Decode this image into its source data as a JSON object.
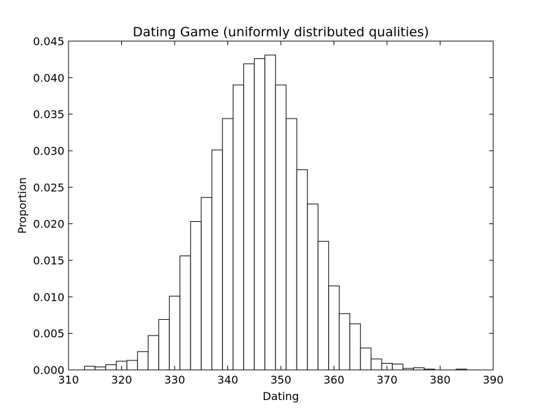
{
  "chart_data": {
    "type": "bar",
    "title": "Dating Game (uniformly distributed qualities)",
    "xlabel": "Dating",
    "ylabel": "Proportion",
    "xlim": [
      310,
      390
    ],
    "ylim": [
      0,
      0.045
    ],
    "xticks": [
      "310",
      "320",
      "330",
      "340",
      "350",
      "360",
      "370",
      "380",
      "390"
    ],
    "yticks": [
      "0.000",
      "0.005",
      "0.010",
      "0.015",
      "0.020",
      "0.025",
      "0.030",
      "0.035",
      "0.040",
      "0.045"
    ],
    "bins": [
      {
        "x0": 313.0,
        "x1": 315.0,
        "value": 0.0005
      },
      {
        "x0": 315.0,
        "x1": 317.0,
        "value": 0.0004
      },
      {
        "x0": 317.0,
        "x1": 319.0,
        "value": 0.0007
      },
      {
        "x0": 319.0,
        "x1": 321.0,
        "value": 0.0012
      },
      {
        "x0": 321.0,
        "x1": 323.0,
        "value": 0.0013
      },
      {
        "x0": 323.0,
        "x1": 325.0,
        "value": 0.0025
      },
      {
        "x0": 325.0,
        "x1": 327.0,
        "value": 0.0047
      },
      {
        "x0": 327.0,
        "x1": 329.0,
        "value": 0.0069
      },
      {
        "x0": 329.0,
        "x1": 331.0,
        "value": 0.0101
      },
      {
        "x0": 331.0,
        "x1": 333.0,
        "value": 0.0156
      },
      {
        "x0": 333.0,
        "x1": 335.0,
        "value": 0.0203
      },
      {
        "x0": 335.0,
        "x1": 337.0,
        "value": 0.0236
      },
      {
        "x0": 337.0,
        "x1": 339.0,
        "value": 0.0301
      },
      {
        "x0": 339.0,
        "x1": 341.0,
        "value": 0.0344
      },
      {
        "x0": 341.0,
        "x1": 343.0,
        "value": 0.039
      },
      {
        "x0": 343.0,
        "x1": 345.0,
        "value": 0.0419
      },
      {
        "x0": 345.0,
        "x1": 347.0,
        "value": 0.0426
      },
      {
        "x0": 347.0,
        "x1": 349.0,
        "value": 0.0431
      },
      {
        "x0": 349.0,
        "x1": 351.0,
        "value": 0.039
      },
      {
        "x0": 351.0,
        "x1": 353.0,
        "value": 0.0344
      },
      {
        "x0": 353.0,
        "x1": 355.0,
        "value": 0.0274
      },
      {
        "x0": 355.0,
        "x1": 357.0,
        "value": 0.0227
      },
      {
        "x0": 357.0,
        "x1": 359.0,
        "value": 0.0176
      },
      {
        "x0": 359.0,
        "x1": 361.0,
        "value": 0.0115
      },
      {
        "x0": 361.0,
        "x1": 363.0,
        "value": 0.0077
      },
      {
        "x0": 363.0,
        "x1": 365.0,
        "value": 0.0063
      },
      {
        "x0": 365.0,
        "x1": 367.0,
        "value": 0.003
      },
      {
        "x0": 367.0,
        "x1": 369.0,
        "value": 0.0015
      },
      {
        "x0": 369.0,
        "x1": 371.0,
        "value": 0.0009
      },
      {
        "x0": 371.0,
        "x1": 373.0,
        "value": 0.0008
      },
      {
        "x0": 373.0,
        "x1": 375.0,
        "value": 0.0002
      },
      {
        "x0": 375.0,
        "x1": 377.0,
        "value": 0.0003
      },
      {
        "x0": 377.0,
        "x1": 379.0,
        "value": 0.0001
      },
      {
        "x0": 379.0,
        "x1": 381.0,
        "value": 0.0
      },
      {
        "x0": 381.0,
        "x1": 383.0,
        "value": 0.0
      },
      {
        "x0": 383.0,
        "x1": 385.0,
        "value": 0.0001
      }
    ],
    "bar_fill": "#ffffff",
    "bar_edge": "#000000",
    "grid": false,
    "legend": "none"
  }
}
